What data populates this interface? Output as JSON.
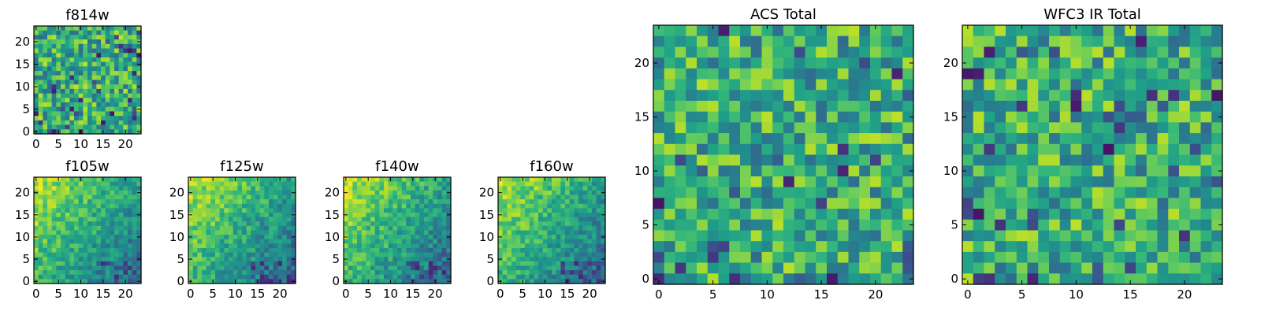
{
  "chart_data": [
    {
      "type": "heatmap",
      "title": "f814w",
      "xticks": [
        "0",
        "5",
        "10",
        "15",
        "20"
      ],
      "yticks": [
        "0",
        "5",
        "10",
        "15",
        "20"
      ],
      "colormap": "viridis",
      "grid": false,
      "rows": 24,
      "cols": 24
    },
    {
      "type": "heatmap",
      "title": "f105w",
      "xticks": [
        "0",
        "5",
        "10",
        "15",
        "20"
      ],
      "yticks": [
        "0",
        "5",
        "10",
        "15",
        "20"
      ],
      "colormap": "viridis",
      "grid": false,
      "rows": 24,
      "cols": 24
    },
    {
      "type": "heatmap",
      "title": "f125w",
      "xticks": [
        "0",
        "5",
        "10",
        "15",
        "20"
      ],
      "yticks": [
        "0",
        "5",
        "10",
        "15",
        "20"
      ],
      "colormap": "viridis",
      "grid": false,
      "rows": 24,
      "cols": 24
    },
    {
      "type": "heatmap",
      "title": "f140w",
      "xticks": [
        "0",
        "5",
        "10",
        "15",
        "20"
      ],
      "yticks": [
        "0",
        "5",
        "10",
        "15",
        "20"
      ],
      "colormap": "viridis",
      "grid": false,
      "rows": 24,
      "cols": 24
    },
    {
      "type": "heatmap",
      "title": "f160w",
      "xticks": [
        "0",
        "5",
        "10",
        "15",
        "20"
      ],
      "yticks": [
        "0",
        "5",
        "10",
        "15",
        "20"
      ],
      "colormap": "viridis",
      "grid": false,
      "rows": 24,
      "cols": 24
    },
    {
      "type": "heatmap",
      "title": "ACS Total",
      "xticks": [
        "0",
        "5",
        "10",
        "15",
        "20"
      ],
      "yticks": [
        "0",
        "5",
        "10",
        "15",
        "20"
      ],
      "colormap": "viridis",
      "grid": false,
      "rows": 24,
      "cols": 24
    },
    {
      "type": "heatmap",
      "title": "WFC3 IR Total",
      "xticks": [
        "0",
        "5",
        "10",
        "15",
        "20"
      ],
      "yticks": [
        "0",
        "5",
        "10",
        "15",
        "20"
      ],
      "colormap": "viridis",
      "grid": false,
      "rows": 24,
      "cols": 24
    }
  ]
}
